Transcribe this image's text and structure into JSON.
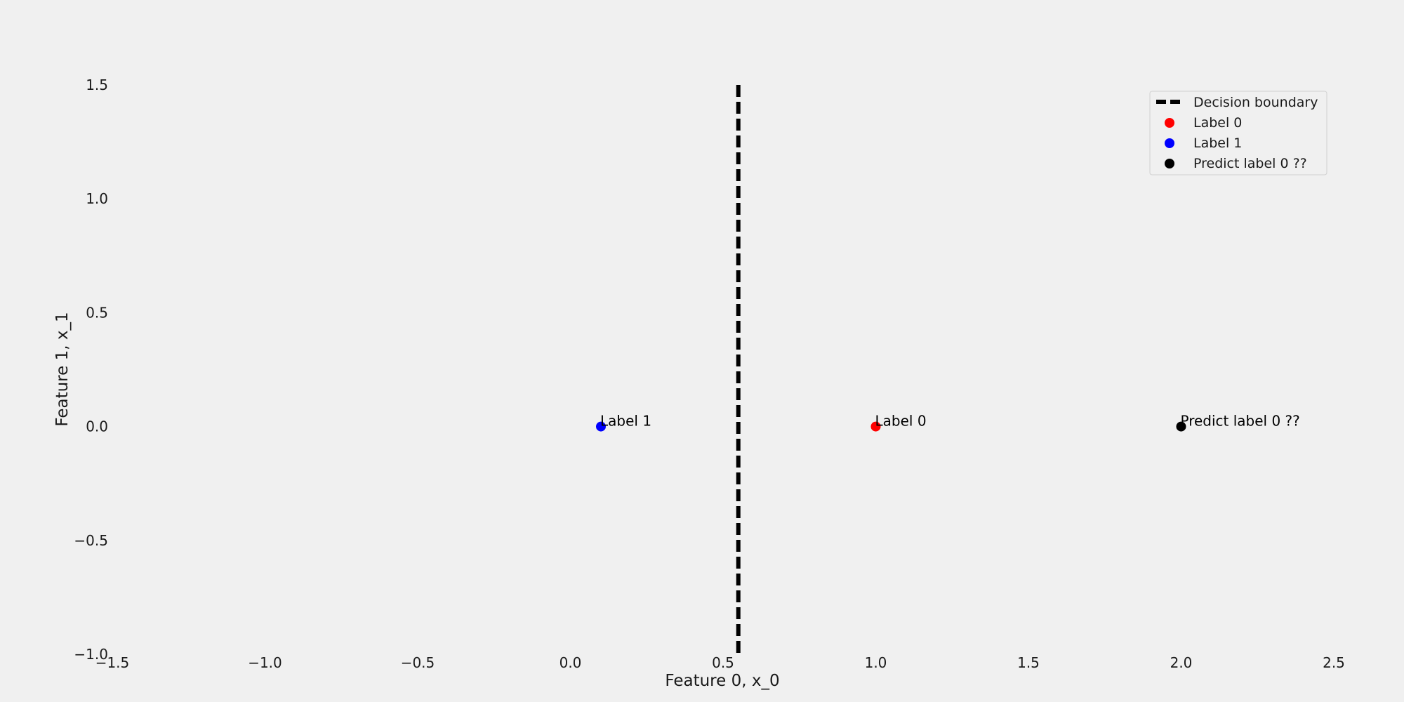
{
  "chart_data": {
    "type": "scatter",
    "title": "",
    "xlabel": "Feature 0, x_0",
    "ylabel": "Feature 1, x_1",
    "xlim": [
      -1.5,
      2.5
    ],
    "ylim": [
      -1.0,
      1.5
    ],
    "xticks": [
      "−1.5",
      "−1.0",
      "−0.5",
      "0.0",
      "0.5",
      "1.0",
      "1.5",
      "2.0",
      "2.5"
    ],
    "yticks": [
      "−1.0",
      "−0.5",
      "0.0",
      "0.5",
      "1.0",
      "1.5"
    ],
    "grid": false,
    "legend_position": "top-right",
    "decision_boundary": {
      "name": "Decision boundary",
      "x": 0.55,
      "style": "dashed",
      "color": "#000000"
    },
    "series": [
      {
        "name": "Label 0",
        "color": "#ff0000",
        "points": [
          {
            "x": 1.0,
            "y": 0.0,
            "label": "Label 0"
          }
        ]
      },
      {
        "name": "Label 1",
        "color": "#0000ff",
        "points": [
          {
            "x": 0.1,
            "y": 0.0,
            "label": "Label 1"
          }
        ]
      },
      {
        "name": "Predict label 0 ??",
        "color": "#000000",
        "points": [
          {
            "x": 2.0,
            "y": 0.0,
            "label": "Predict label 0 ??"
          }
        ]
      }
    ]
  }
}
